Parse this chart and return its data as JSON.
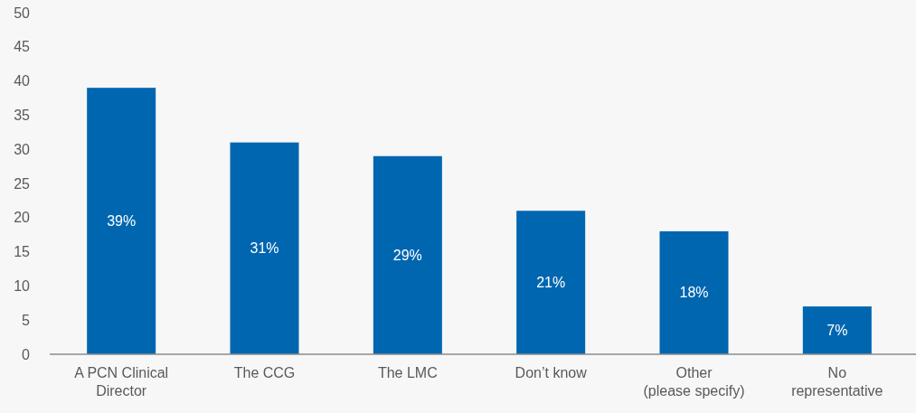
{
  "chart_data": {
    "type": "bar",
    "categories": [
      "A PCN Clinical Director",
      "The CCG",
      "The LMC",
      "Don’t know",
      "Other (please specify)",
      "No representative"
    ],
    "values": [
      39,
      31,
      29,
      21,
      18,
      7
    ],
    "value_labels": [
      "39%",
      "31%",
      "29%",
      "21%",
      "18%",
      "7%"
    ],
    "color": "#0066b0",
    "ylim": [
      0,
      50
    ],
    "yticks": [
      0,
      5,
      10,
      15,
      20,
      25,
      30,
      35,
      40,
      45,
      50
    ]
  }
}
